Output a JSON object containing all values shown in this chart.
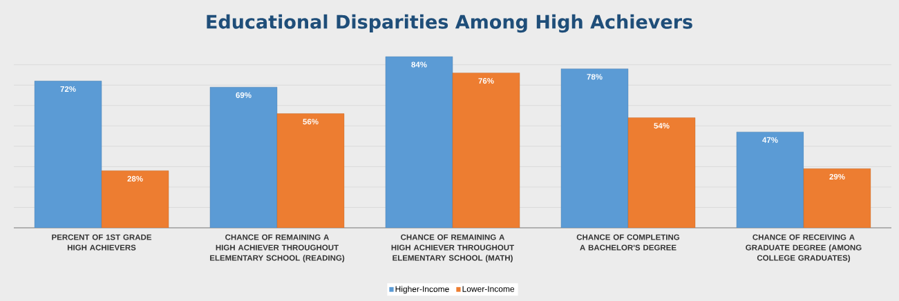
{
  "chart_data": {
    "type": "bar",
    "title": "Educational Disparities Among High Achievers",
    "categories": [
      "PERCENT OF 1ST GRADE HIGH ACHIEVERS",
      "CHANCE OF REMAINING A HIGH ACHIEVER THROUGHOUT ELEMENTARY SCHOOL (READING)",
      "CHANCE OF REMAINING A HIGH ACHIEVER THROUGHOUT ELEMENTARY SCHOOL (MATH)",
      "CHANCE OF COMPLETING A BACHELOR'S DEGREE",
      "CHANCE OF RECEIVING A GRADUATE DEGREE (AMONG COLLEGE GRADUATES)"
    ],
    "series": [
      {
        "name": "Higher-Income",
        "color": "#5b9bd5",
        "values": [
          72,
          69,
          84,
          78,
          47
        ],
        "value_labels": [
          "72%",
          "69%",
          "84%",
          "78%",
          "47%"
        ]
      },
      {
        "name": "Lower-Income",
        "color": "#ed7d31",
        "values": [
          28,
          56,
          76,
          54,
          29
        ],
        "value_labels": [
          "28%",
          "56%",
          "76%",
          "54%",
          "29%"
        ]
      }
    ],
    "grid": "y",
    "legend": "bottom",
    "tick_labels": "x"
  }
}
